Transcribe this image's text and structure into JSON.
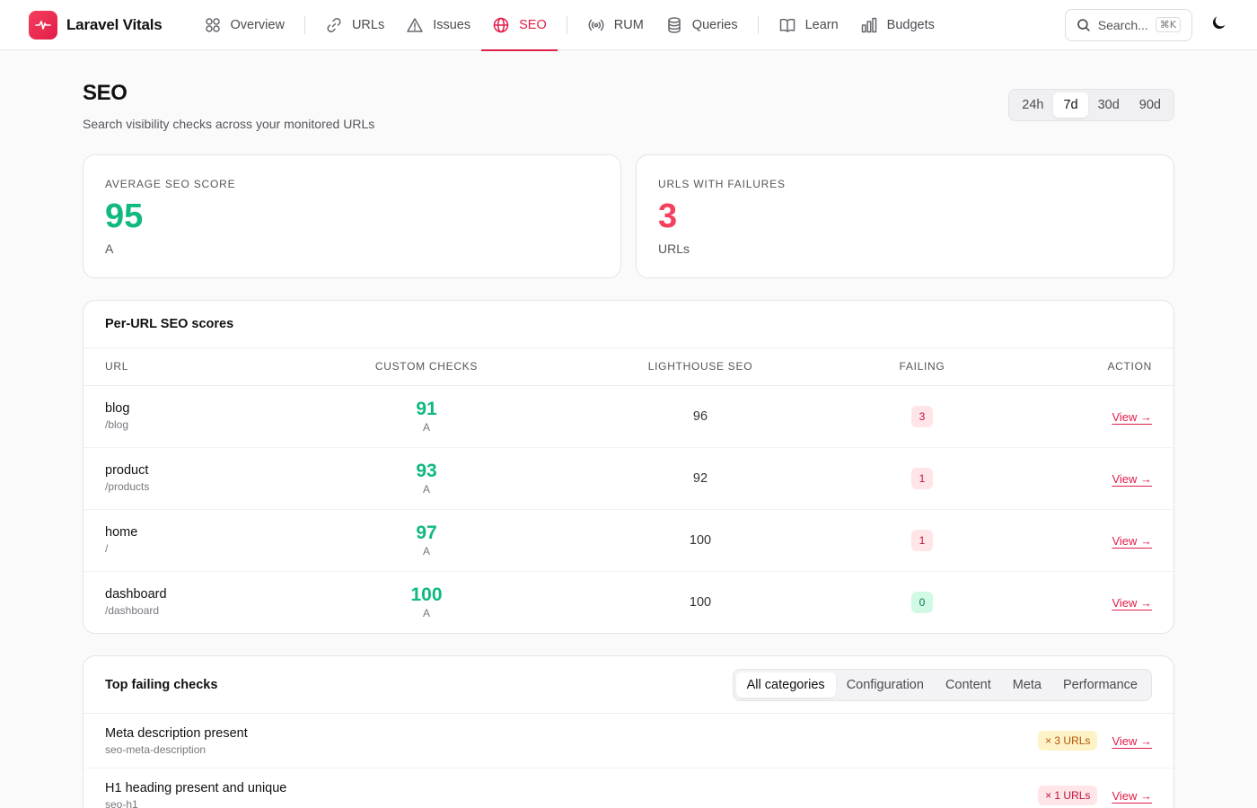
{
  "app": {
    "name": "Laravel Vitals"
  },
  "nav": {
    "items": [
      {
        "label": "Overview",
        "icon": "grid-icon"
      },
      {
        "label": "URLs",
        "icon": "link-icon"
      },
      {
        "label": "Issues",
        "icon": "warning-icon"
      },
      {
        "label": "SEO",
        "icon": "globe-icon",
        "active": true
      },
      {
        "label": "RUM",
        "icon": "broadcast-icon"
      },
      {
        "label": "Queries",
        "icon": "database-icon"
      },
      {
        "label": "Learn",
        "icon": "book-icon"
      },
      {
        "label": "Budgets",
        "icon": "bar-chart-icon"
      }
    ],
    "search_placeholder": "Search...",
    "search_shortcut": "⌘K"
  },
  "page": {
    "title": "SEO",
    "subtitle": "Search visibility checks across your monitored URLs",
    "ranges": [
      "24h",
      "7d",
      "30d",
      "90d"
    ],
    "active_range": "7d"
  },
  "stats": {
    "avg": {
      "label": "AVERAGE SEO SCORE",
      "value": "95",
      "foot": "A"
    },
    "fail": {
      "label": "URLS WITH FAILURES",
      "value": "3",
      "foot": "URLs"
    }
  },
  "scores_table": {
    "title": "Per-URL SEO scores",
    "headers": {
      "url": "URL",
      "custom": "CUSTOM CHECKS",
      "lighthouse": "LIGHTHOUSE SEO",
      "failing": "FAILING",
      "action": "ACTION"
    },
    "rows": [
      {
        "name": "blog",
        "path": "/blog",
        "score": "91",
        "grade": "A",
        "lighthouse": "96",
        "failing": "3",
        "action": "View →"
      },
      {
        "name": "product",
        "path": "/products",
        "score": "93",
        "grade": "A",
        "lighthouse": "92",
        "failing": "1",
        "action": "View →"
      },
      {
        "name": "home",
        "path": "/",
        "score": "97",
        "grade": "A",
        "lighthouse": "100",
        "failing": "1",
        "action": "View →"
      },
      {
        "name": "dashboard",
        "path": "/dashboard",
        "score": "100",
        "grade": "A",
        "lighthouse": "100",
        "failing": "0",
        "action": "View →"
      }
    ]
  },
  "failing_checks": {
    "title": "Top failing checks",
    "categories": [
      "All categories",
      "Configuration",
      "Content",
      "Meta",
      "Performance"
    ],
    "active_category": "All categories",
    "rows": [
      {
        "name": "Meta description present",
        "id": "seo-meta-description",
        "badge": "× 3 URLs",
        "tone": "amber",
        "action": "View →"
      },
      {
        "name": "H1 heading present and unique",
        "id": "seo-h1",
        "badge": "× 1 URLs",
        "tone": "rose",
        "action": "View →"
      }
    ]
  },
  "colors": {
    "accent": "#e11d48",
    "good": "#10b981",
    "bad": "#f43f5e"
  }
}
